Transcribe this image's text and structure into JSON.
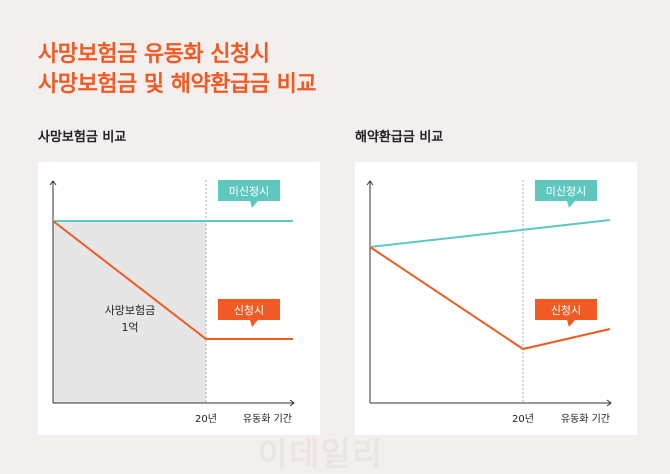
{
  "title": {
    "line1": "사망보험금 유동화 신청시",
    "line2": "사망보험금 및 해약환급금 비교"
  },
  "left": {
    "subtitle": "사망보험금 비교",
    "badge_not_applied": "미신청시",
    "badge_applied": "신청시",
    "area_label_1": "사망보험금",
    "area_label_2": "1억",
    "x_tick": "20년",
    "x_label": "유동화 기간"
  },
  "right": {
    "subtitle": "해약환급금 비교",
    "badge_not_applied": "미신청시",
    "badge_applied": "신청시",
    "x_tick": "20년",
    "x_label": "유동화 기간"
  },
  "watermark": "이데일리",
  "colors": {
    "accent": "#f15a22",
    "teal": "#5ec8bf",
    "fill": "#e6e6e6",
    "bg": "#f3efee"
  }
}
